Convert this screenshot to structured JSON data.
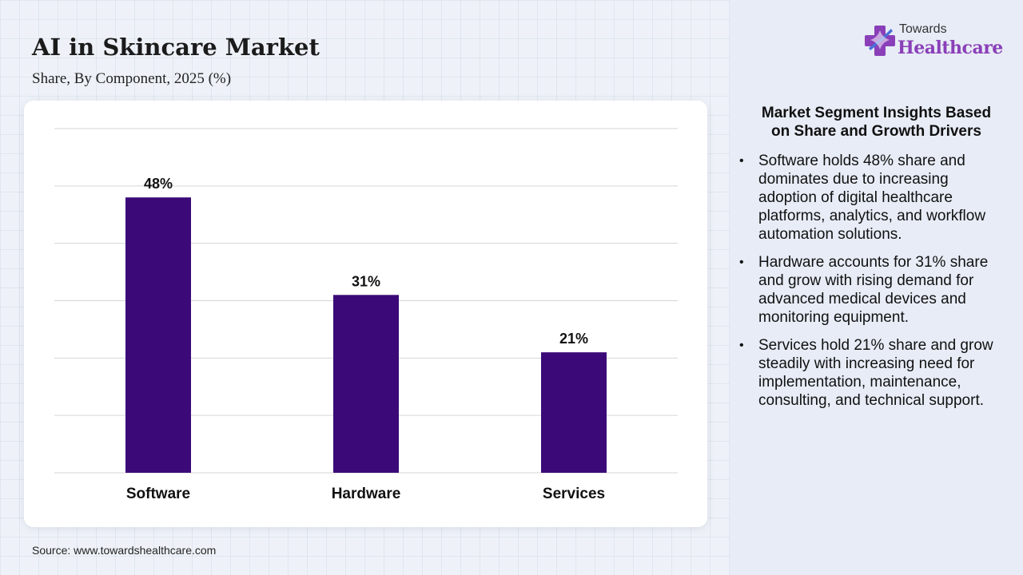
{
  "header": {
    "title": "AI in Skincare Market",
    "subtitle": "Share, By Component, 2025 (%)"
  },
  "brand": {
    "top": "Towards",
    "main": "Healthcare",
    "mark_icon": "medical-cross-icon"
  },
  "source": "Source: www.towardshealthcare.com",
  "insights": {
    "title": "Market Segment Insights Based on Share and Growth Drivers",
    "bullets": [
      "Software holds 48% share and dominates due to increasing adoption of digital healthcare platforms, analytics, and workflow automation solutions.",
      "Hardware accounts for 31% share and grow with rising demand for advanced medical devices and monitoring equipment.",
      "Services hold 21% share and grow steadily with increasing need for implementation, maintenance, consulting, and technical support."
    ]
  },
  "colors": {
    "bar": "#3b0a78",
    "gridline": "#d6d6d6",
    "brand_purple": "#8a3fb8",
    "brand_blue": "#4a6fd8"
  },
  "chart_data": {
    "type": "bar",
    "title": "",
    "xlabel": "",
    "ylabel": "",
    "categories": [
      "Software",
      "Hardware",
      "Services"
    ],
    "values": [
      48,
      31,
      21
    ],
    "data_labels": [
      "48%",
      "31%",
      "21%"
    ],
    "ylim": [
      0,
      60
    ],
    "grid": true,
    "legend": "none"
  }
}
